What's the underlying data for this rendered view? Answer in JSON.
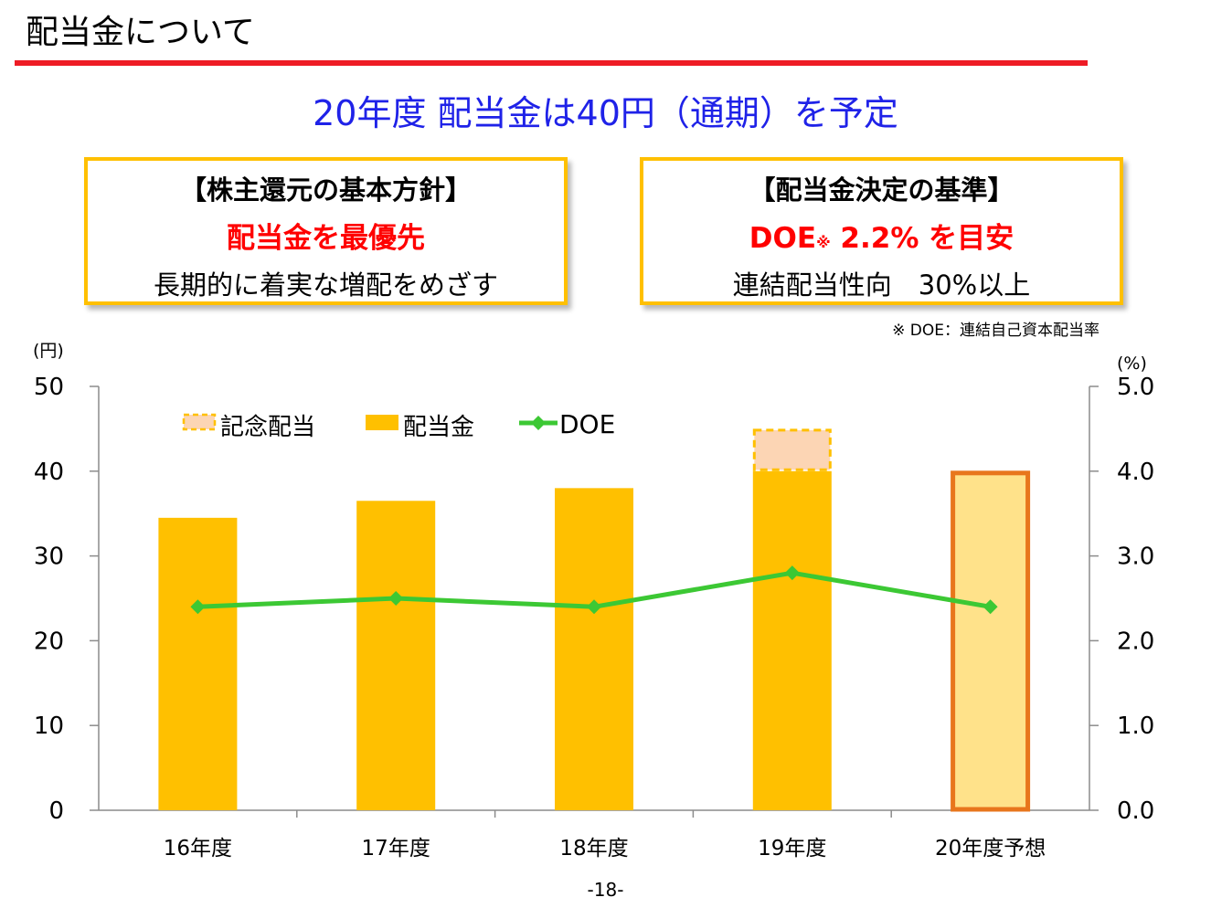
{
  "page": {
    "title": "配当金について",
    "headline": "20年度 配当金は40円（通期）を予定",
    "page_number": "-18-",
    "footnote": "※ DOE：連結自己資本配当率"
  },
  "policy": {
    "heading": "【株主還元の基本方針】",
    "emphasis": "配当金を最優先",
    "detail": "長期的に着実な増配をめざす"
  },
  "criteria": {
    "heading": "【配当金決定の基準】",
    "emphasis_prefix": "DOE",
    "emphasis_mark": "※",
    "emphasis_suffix": " 2.2% を目安",
    "detail": "連結配当性向　30%以上"
  },
  "colors": {
    "title_rule": "#ee1c25",
    "headline": "#1f22e8",
    "box_border": "#ffc000",
    "emphasis": "#ff0000",
    "dividend_bar": "#ffc000",
    "commemorative_fill": "#fcd5b4",
    "forecast_fill": "#ffe28a",
    "forecast_border": "#e8761c",
    "doe_line": "#3cc834"
  },
  "chart_data": {
    "type": "bar",
    "categories": [
      "16年度",
      "17年度",
      "18年度",
      "19年度",
      "20年度予想"
    ],
    "y_left": {
      "unit": "(円)",
      "min": 0,
      "max": 50,
      "ticks": [
        "0",
        "10",
        "20",
        "30",
        "40",
        "50"
      ]
    },
    "y_right": {
      "unit": "(%)",
      "min": 0,
      "max": 5,
      "ticks": [
        "0.0",
        "1.0",
        "2.0",
        "3.0",
        "4.0",
        "5.0"
      ]
    },
    "series": [
      {
        "name": "配当金",
        "type": "bar",
        "axis": "left",
        "values": [
          34.5,
          36.5,
          38,
          40,
          40
        ]
      },
      {
        "name": "記念配当",
        "type": "bar-stacked",
        "axis": "left",
        "values": [
          0,
          0,
          0,
          5,
          0
        ]
      },
      {
        "name": "DOE",
        "type": "line",
        "axis": "right",
        "values": [
          2.4,
          2.5,
          2.4,
          2.8,
          2.4
        ]
      }
    ],
    "forecast_index": 4,
    "legend": {
      "position": "top-left",
      "items": [
        "記念配当",
        "配当金",
        "DOE"
      ]
    },
    "grid": false
  }
}
